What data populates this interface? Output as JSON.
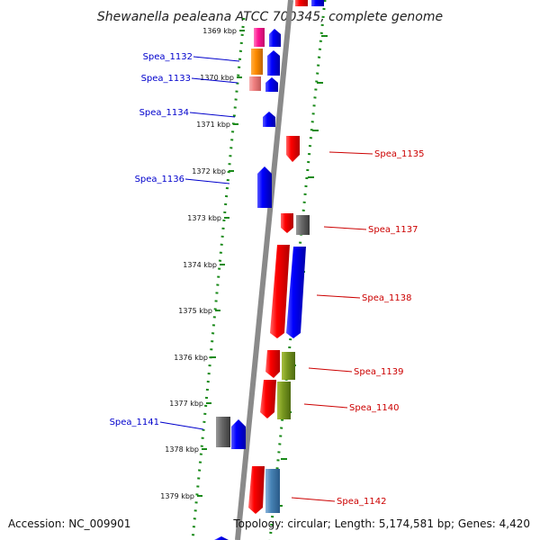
{
  "title": "Shewanella pealeana ATCC 700345, complete genome",
  "footer": {
    "accession": "Accession: NC_009901",
    "summary": "Topology: circular; Length: 5,174,581 bp; Genes: 4,420"
  },
  "colors": {
    "backbone": "#8a8a8a",
    "ruler": "#1a8a1a",
    "forward_label": "#0000cc",
    "reverse_label": "#cc0000"
  },
  "scale_marks": [
    "1369 kbp",
    "1370 kbp",
    "1371 kbp",
    "1372 kbp",
    "1373 kbp",
    "1374 kbp",
    "1375 kbp",
    "1376 kbp",
    "1377 kbp",
    "1378 kbp",
    "1379 kbp"
  ],
  "gene_labels": [
    {
      "text": "Spea_1132",
      "strand": "forward"
    },
    {
      "text": "Spea_1133",
      "strand": "forward"
    },
    {
      "text": "Spea_1134",
      "strand": "forward"
    },
    {
      "text": "Spea_1135",
      "strand": "reverse"
    },
    {
      "text": "Spea_1136",
      "strand": "forward"
    },
    {
      "text": "Spea_1137",
      "strand": "reverse"
    },
    {
      "text": "Spea_1138",
      "strand": "reverse"
    },
    {
      "text": "Spea_1139",
      "strand": "reverse"
    },
    {
      "text": "Spea_1140",
      "strand": "reverse"
    },
    {
      "text": "Spea_1141",
      "strand": "forward"
    },
    {
      "text": "Spea_1142",
      "strand": "reverse"
    }
  ]
}
